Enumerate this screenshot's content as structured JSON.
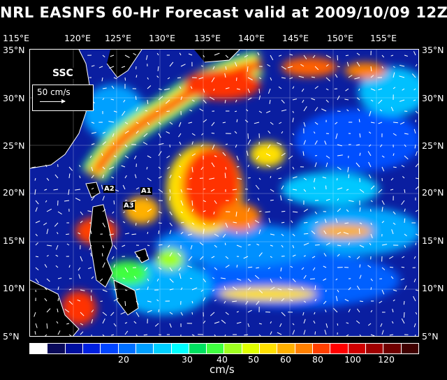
{
  "title": "NRL EASNFS  60-Hr Forecast valid at 2009/10/09 12Z",
  "lon_labels": [
    "115°E",
    "120°E",
    "125°E",
    "130°E",
    "135°E",
    "140°E",
    "145°E",
    "150°E",
    "155°E"
  ],
  "lat_labels": [
    "35°N",
    "30°N",
    "25°N",
    "20°N",
    "15°N",
    "10°N",
    "5°N"
  ],
  "legend_label": "SSC",
  "reference_vector": "50 cm/s",
  "points": [
    "A1",
    "A2",
    "A3"
  ],
  "colorbar": {
    "ticks": [
      "20",
      "30",
      "40",
      "50",
      "60",
      "80",
      "100",
      "120"
    ],
    "unit": "cm/s",
    "colors": [
      "#ffffff",
      "#0a0a5a",
      "#0010a0",
      "#0020e0",
      "#0045ff",
      "#0070ff",
      "#00a0ff",
      "#00d0ff",
      "#00ffff",
      "#00e060",
      "#40ff40",
      "#a0ff20",
      "#e0ff00",
      "#ffe000",
      "#ffb000",
      "#ff8000",
      "#ff4000",
      "#ff0000",
      "#d00000",
      "#a00000",
      "#700000",
      "#400000"
    ]
  },
  "map_extent": {
    "lon_min": 114,
    "lon_max": 159,
    "lat_min": 5,
    "lat_max": 35
  }
}
